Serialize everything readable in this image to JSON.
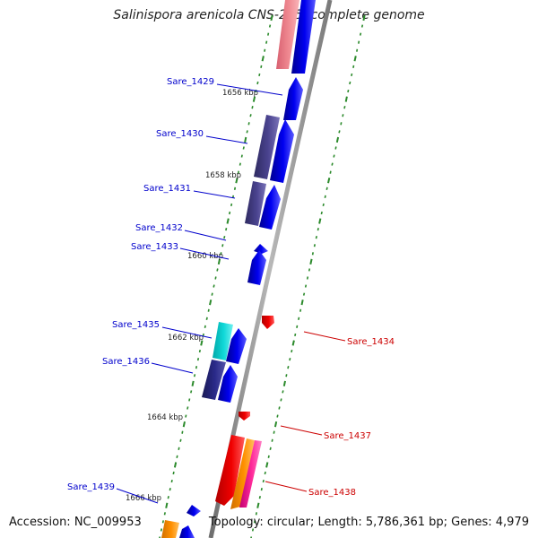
{
  "title": "Salinispora arenicola CNS-205, complete genome",
  "footer": {
    "accession": "Accession: NC_009953",
    "info": "Topology: circular; Length: 5,786,361 bp; Genes: 4,979"
  },
  "colors": {
    "backbone": "#8c8c8c",
    "tick": "#2b8a2b",
    "label_forward": "#0000cc",
    "label_reverse": "#cc0000"
  },
  "kbp_labels": [
    "1656 kbp",
    "1658 kbp",
    "1660 kbp",
    "1662 kbp",
    "1664 kbp",
    "1666 kbp"
  ],
  "gene_labels_forward": [
    "Sare_1429",
    "Sare_1430",
    "Sare_1431",
    "Sare_1432",
    "Sare_1433",
    "Sare_1435",
    "Sare_1436",
    "Sare_1439"
  ],
  "gene_labels_reverse": [
    "Sare_1434",
    "Sare_1437",
    "Sare_1438"
  ]
}
